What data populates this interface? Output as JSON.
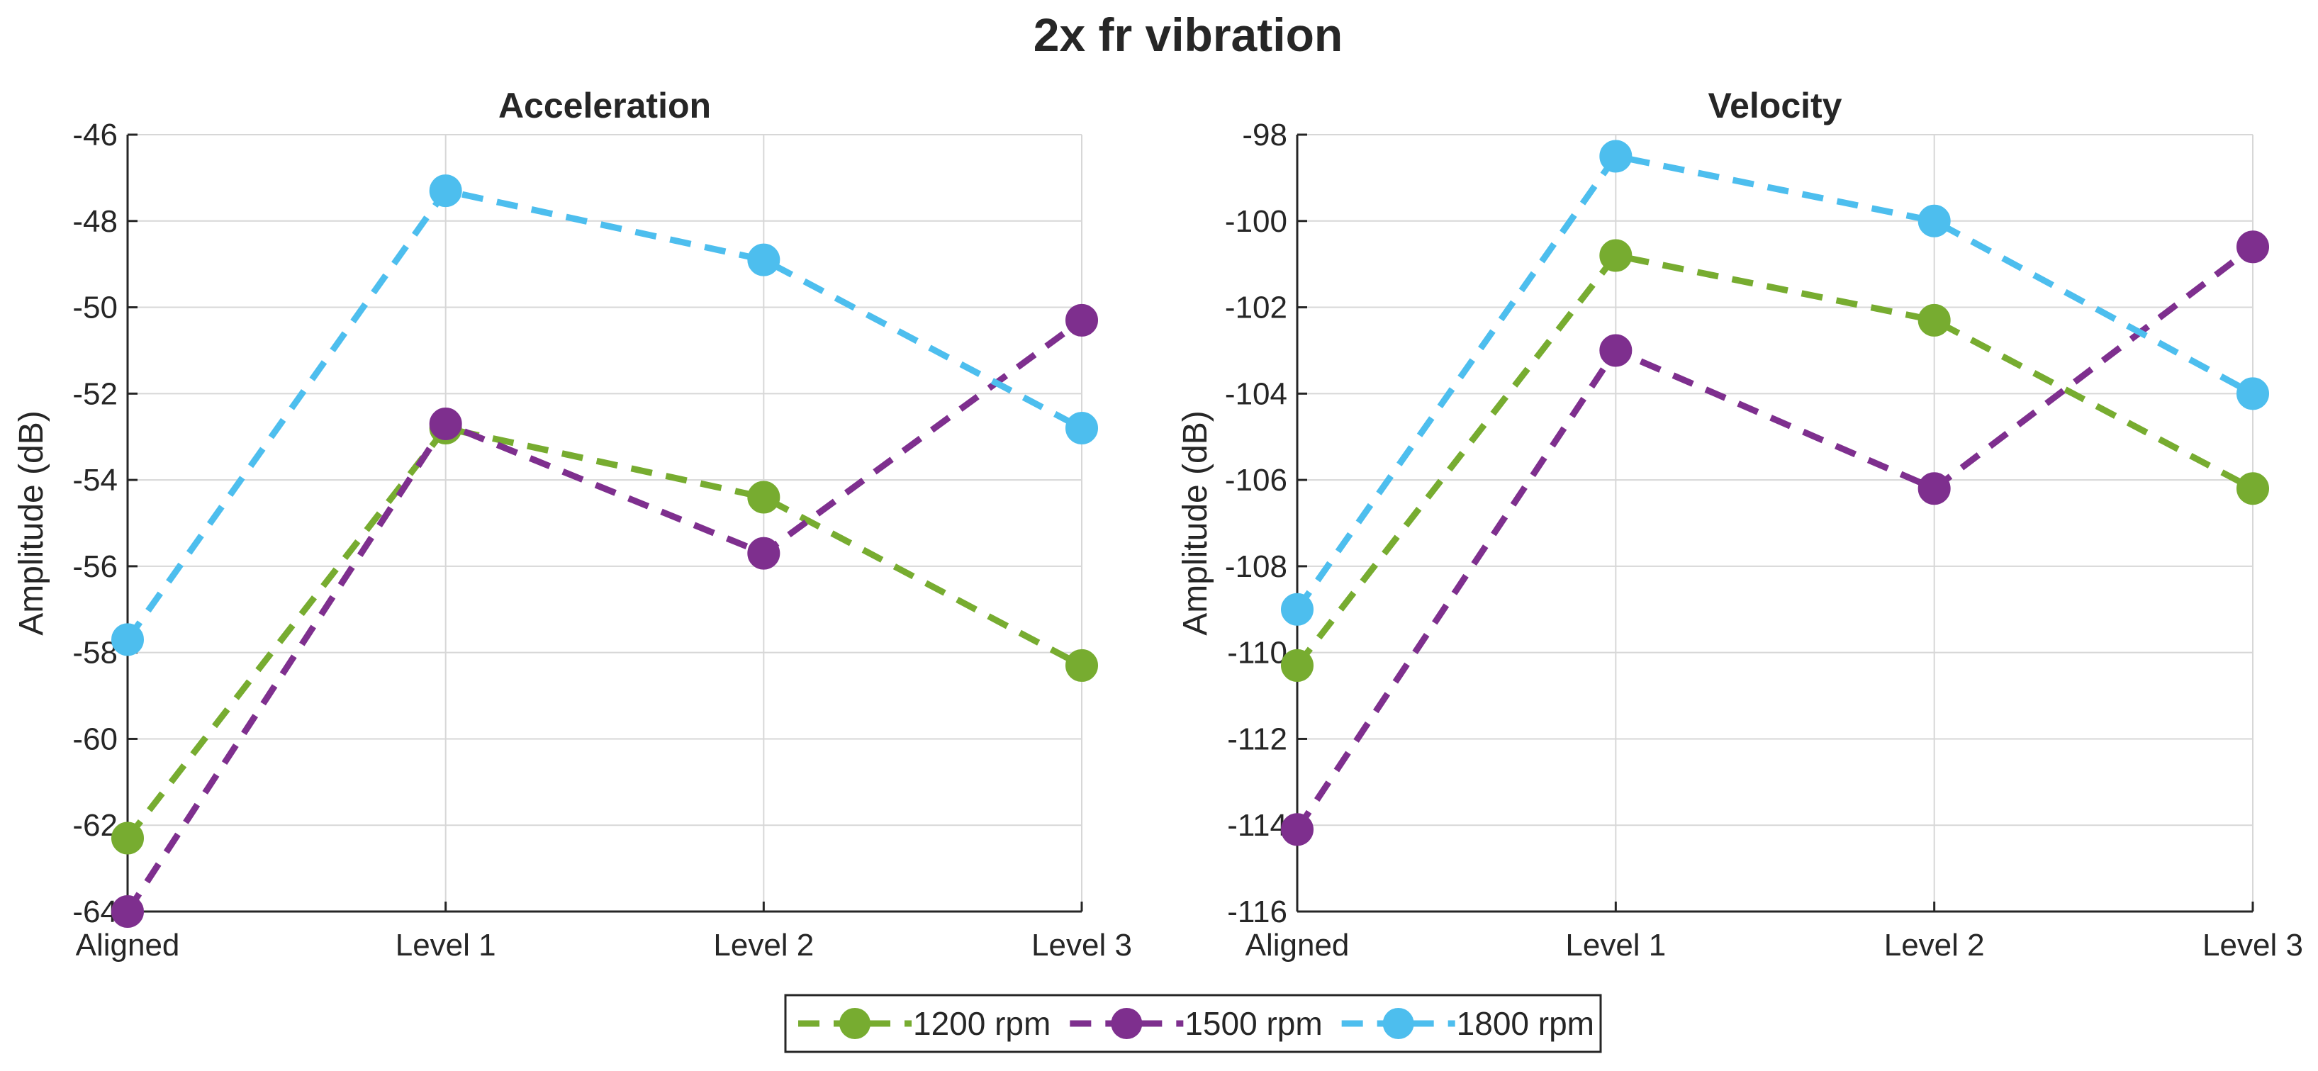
{
  "chart_data": {
    "title": "2x fr vibration",
    "legend": {
      "placement": "bottom-center",
      "entries": [
        "1200 rpm",
        "1500 rpm",
        "1800 rpm"
      ]
    },
    "series_colors": {
      "1200 rpm": "#77ac30",
      "1500 rpm": "#7e2f8e",
      "1800 rpm": "#4dbeee"
    },
    "panels": [
      {
        "type": "line",
        "title": "Acceleration",
        "xlabel": "",
        "ylabel": "Amplitude (dB)",
        "categories": [
          "Aligned",
          "Level 1",
          "Level 2",
          "Level 3"
        ],
        "ylim": [
          -64,
          -46
        ],
        "yticks": [
          -46,
          -48,
          -50,
          -52,
          -54,
          -56,
          -58,
          -60,
          -62,
          -64
        ],
        "grid": true,
        "series": [
          {
            "name": "1200 rpm",
            "values": [
              -62.3,
              -52.8,
              -54.4,
              -58.3
            ]
          },
          {
            "name": "1500 rpm",
            "values": [
              -64.0,
              -52.7,
              -55.7,
              -50.3
            ]
          },
          {
            "name": "1800 rpm",
            "values": [
              -57.7,
              -47.3,
              -48.9,
              -52.8
            ]
          }
        ]
      },
      {
        "type": "line",
        "title": "Velocity",
        "xlabel": "",
        "ylabel": "Amplitude (dB)",
        "categories": [
          "Aligned",
          "Level 1",
          "Level 2",
          "Level 3"
        ],
        "ylim": [
          -116,
          -98
        ],
        "yticks": [
          -98,
          -100,
          -102,
          -104,
          -106,
          -108,
          -110,
          -112,
          -114,
          -116
        ],
        "grid": true,
        "series": [
          {
            "name": "1200 rpm",
            "values": [
              -110.3,
              -100.8,
              -102.3,
              -106.2
            ]
          },
          {
            "name": "1500 rpm",
            "values": [
              -114.1,
              -103.0,
              -106.2,
              -100.6
            ]
          },
          {
            "name": "1800 rpm",
            "values": [
              -109.0,
              -98.5,
              -100.0,
              -104.0
            ]
          }
        ]
      }
    ]
  }
}
